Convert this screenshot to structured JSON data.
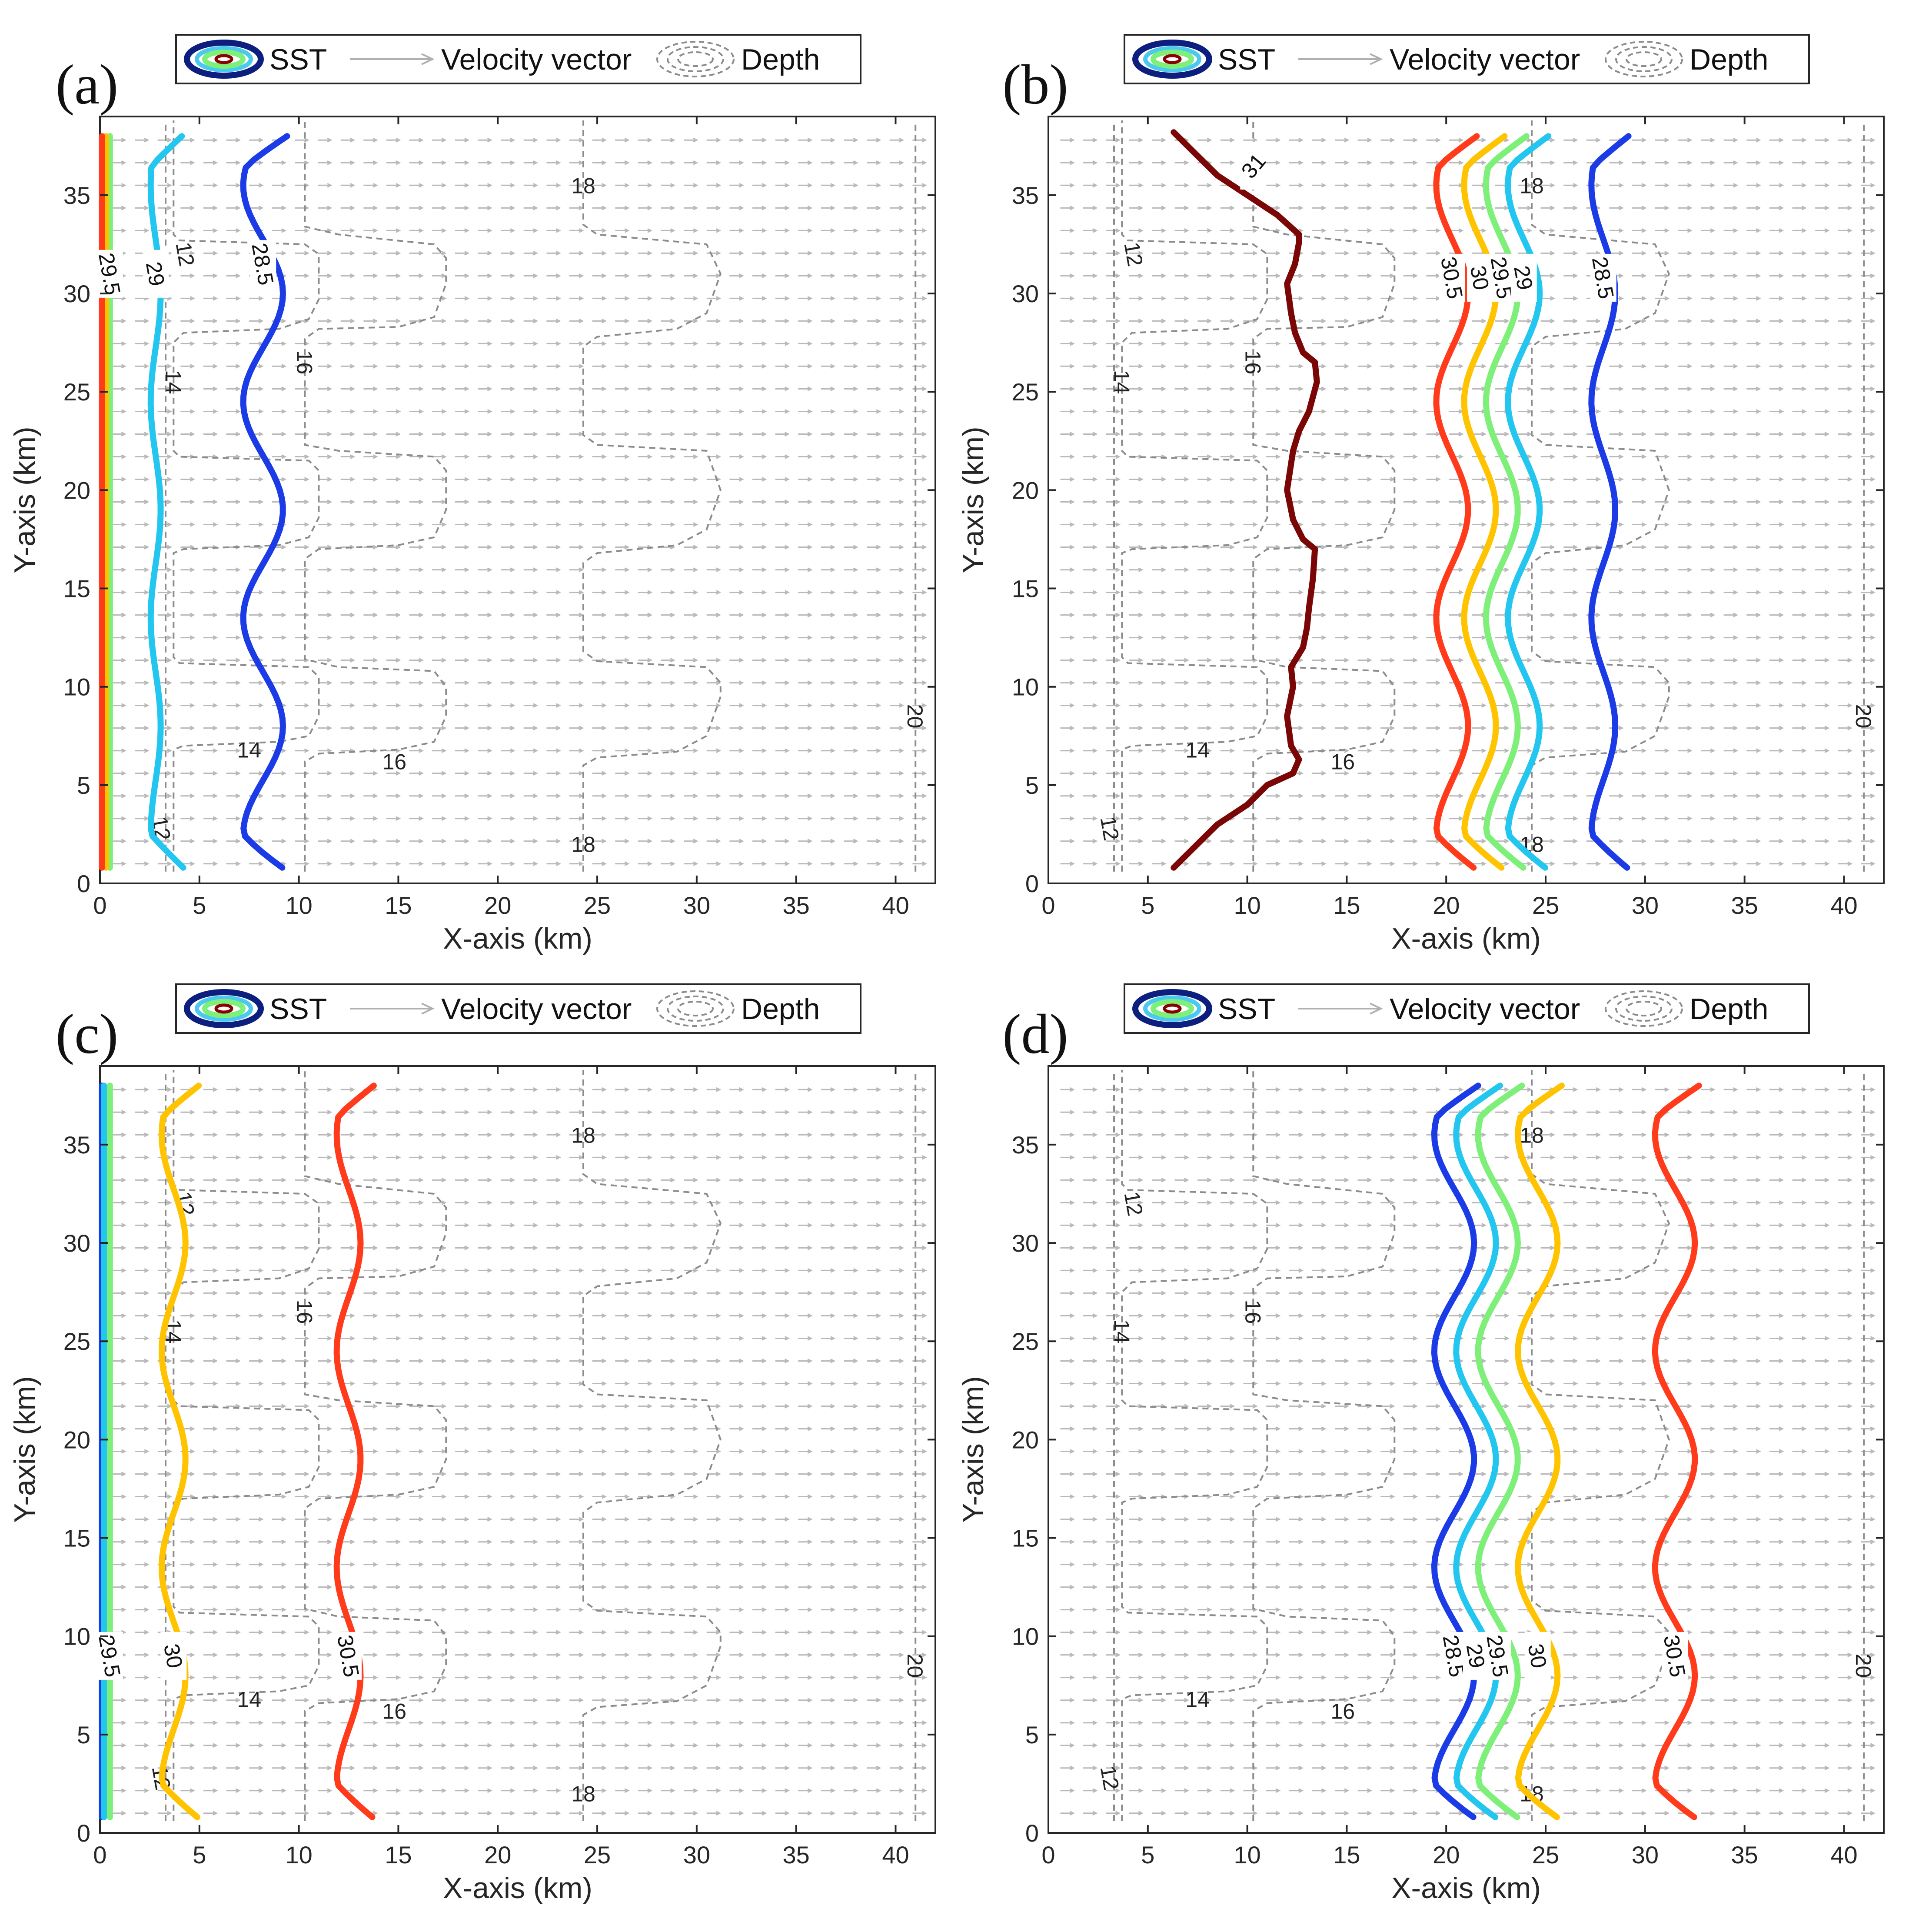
{
  "figure": {
    "xlabel": "X-axis (km)",
    "ylabel": "Y-axis (km)",
    "xlim": [
      0,
      42
    ],
    "ylim": [
      0,
      39
    ],
    "xticks": [
      0,
      5,
      10,
      15,
      20,
      25,
      30,
      35,
      40
    ],
    "yticks": [
      0,
      5,
      10,
      15,
      20,
      25,
      30,
      35
    ],
    "legend": {
      "sst_label": "SST",
      "vector_label": "Velocity vector",
      "depth_label": "Depth",
      "sst_swatch_colors": [
        "#0c1f7e",
        "#4cc9ee",
        "#7ef07a",
        "#8b0000"
      ]
    },
    "colors": {
      "sst_28_5": "#1b3be6",
      "sst_29": "#23c6ee",
      "sst_29_5": "#7ef07a",
      "sst_30": "#ffc300",
      "sst_30_5": "#ff3b1b",
      "sst_31": "#7a0606",
      "depth": "#8c8c8c",
      "vector": "#b9b9b9"
    }
  },
  "chart_data": [
    {
      "type": "contour",
      "panel": "(a)",
      "sst_contours": [
        {
          "level": 28.5,
          "color": "#1b3be6",
          "x_mean": 8.2,
          "label": "28.5"
        },
        {
          "level": 29,
          "color": "#23c6ee",
          "x_mean": 2.8,
          "label": "29"
        },
        {
          "level": 29.5,
          "color": "#7ef07a",
          "x_mean": 0.5,
          "label": "29.5"
        },
        {
          "level": 30,
          "color": "#ffc300",
          "x_mean": 0.3,
          "label": ""
        },
        {
          "level": 30.5,
          "color": "#ff3b1b",
          "x_mean": 0.1,
          "label": ""
        }
      ],
      "depth_labels": [
        "12",
        "14",
        "16",
        "18",
        "20"
      ]
    },
    {
      "type": "contour",
      "panel": "(b)",
      "sst_contours": [
        {
          "level": 31,
          "color": "#7a0606",
          "x_mean": 12.0,
          "label": "31"
        },
        {
          "level": 30.5,
          "color": "#ff3b1b",
          "x_mean": 20.3,
          "label": "30.5"
        },
        {
          "level": 30,
          "color": "#ffc300",
          "x_mean": 21.7,
          "label": "30"
        },
        {
          "level": 29.5,
          "color": "#7ef07a",
          "x_mean": 22.8,
          "label": "29.5"
        },
        {
          "level": 29,
          "color": "#23c6ee",
          "x_mean": 23.9,
          "label": "29"
        },
        {
          "level": 28.5,
          "color": "#1b3be6",
          "x_mean": 27.9,
          "label": "28.5"
        }
      ],
      "depth_labels": [
        "12",
        "14",
        "16",
        "18",
        "20"
      ]
    },
    {
      "type": "contour",
      "panel": "(c)",
      "sst_contours": [
        {
          "level": 28.5,
          "color": "#1b3be6",
          "x_mean": 0.1,
          "label": ""
        },
        {
          "level": 29,
          "color": "#23c6ee",
          "x_mean": 0.2,
          "label": ""
        },
        {
          "level": 29.5,
          "color": "#7ef07a",
          "x_mean": 0.5,
          "label": "29.5"
        },
        {
          "level": 30,
          "color": "#ffc300",
          "x_mean": 3.7,
          "label": "30"
        },
        {
          "level": 30.5,
          "color": "#ff3b1b",
          "x_mean": 12.5,
          "label": "30.5"
        }
      ],
      "depth_labels": [
        "12",
        "14",
        "16",
        "18",
        "20"
      ]
    },
    {
      "type": "contour",
      "panel": "(d)",
      "sst_contours": [
        {
          "level": 28.5,
          "color": "#1b3be6",
          "x_mean": 20.4,
          "label": "28.5"
        },
        {
          "level": 29,
          "color": "#23c6ee",
          "x_mean": 21.5,
          "label": "29"
        },
        {
          "level": 29.5,
          "color": "#7ef07a",
          "x_mean": 22.6,
          "label": "29.5"
        },
        {
          "level": 30,
          "color": "#ffc300",
          "x_mean": 24.6,
          "label": "30"
        },
        {
          "level": 30.5,
          "color": "#ff3b1b",
          "x_mean": 31.5,
          "label": "30.5"
        }
      ],
      "depth_labels": [
        "12",
        "14",
        "16",
        "18",
        "20"
      ]
    }
  ]
}
